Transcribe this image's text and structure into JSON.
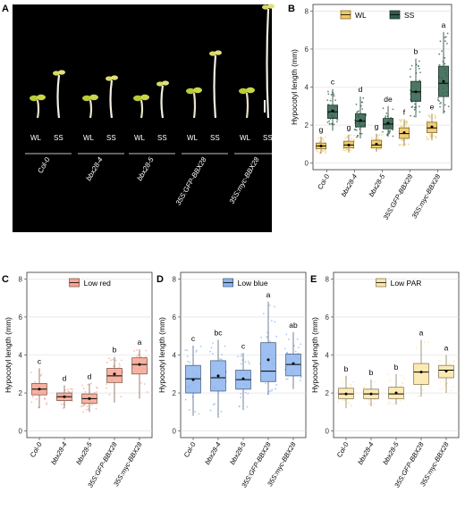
{
  "panel_a": {
    "label": "A",
    "condition_labels": [
      "WL",
      "SS"
    ],
    "genotypes": [
      "Col-0",
      "bbx28-4",
      "bbx28-5",
      "35S:GFP-BBX28",
      "35S:myc-BBX28"
    ]
  },
  "chart_data": [
    {
      "panel": "B",
      "type": "box",
      "xlabel": "",
      "ylabel": "Hypocotyl length (mm)",
      "ylim": [
        0,
        8
      ],
      "yticks": [
        0,
        2,
        4,
        6,
        8
      ],
      "grid": "horizontal",
      "legend": "top-center",
      "categories": [
        "Col-0",
        "bbx28-4",
        "bbx28-5",
        "35S:GFP-BBX28",
        "35S:myc-BBX28"
      ],
      "series": [
        {
          "name": "WL",
          "color": "#f1c75f",
          "boxes": [
            {
              "min": 0.5,
              "q1": 0.75,
              "median": 0.9,
              "q3": 1.05,
              "max": 1.4,
              "mean": 0.9
            },
            {
              "min": 0.55,
              "q1": 0.8,
              "median": 0.95,
              "q3": 1.15,
              "max": 1.5,
              "mean": 0.95
            },
            {
              "min": 0.6,
              "q1": 0.8,
              "median": 0.95,
              "q3": 1.2,
              "max": 1.55,
              "mean": 1.0
            },
            {
              "min": 0.9,
              "q1": 1.3,
              "median": 1.55,
              "q3": 1.85,
              "max": 2.3,
              "mean": 1.6
            },
            {
              "min": 1.2,
              "q1": 1.6,
              "median": 1.85,
              "q3": 2.15,
              "max": 2.6,
              "mean": 1.9
            }
          ],
          "letters": [
            "g",
            "g",
            "g",
            "f",
            "e"
          ]
        },
        {
          "name": "SS",
          "color": "#2f5e4a",
          "boxes": [
            {
              "min": 1.7,
              "q1": 2.35,
              "median": 2.7,
              "q3": 3.05,
              "max": 3.9,
              "mean": 2.75
            },
            {
              "min": 1.3,
              "q1": 1.9,
              "median": 2.2,
              "q3": 2.6,
              "max": 3.5,
              "mean": 2.25
            },
            {
              "min": 1.4,
              "q1": 1.8,
              "median": 2.05,
              "q3": 2.35,
              "max": 3.0,
              "mean": 2.1
            },
            {
              "min": 2.4,
              "q1": 3.25,
              "median": 3.75,
              "q3": 4.3,
              "max": 5.5,
              "mean": 3.75
            },
            {
              "min": 2.6,
              "q1": 3.5,
              "median": 4.2,
              "q3": 5.1,
              "max": 6.9,
              "mean": 4.3
            }
          ],
          "letters": [
            "c",
            "d",
            "de",
            "b",
            "a"
          ]
        }
      ]
    },
    {
      "panel": "C",
      "type": "box",
      "xlabel": "",
      "ylabel": "Hypocotyl length (mm)",
      "ylim": [
        0,
        8
      ],
      "yticks": [
        0,
        2,
        4,
        6,
        8
      ],
      "grid": "horizontal",
      "legend": "top-center",
      "categories": [
        "Col-0",
        "bbx28-4",
        "bbx28-5",
        "35S:GFP-BBX28",
        "35S:myc-BBX28"
      ],
      "series": [
        {
          "name": "Low red",
          "color": "#f4a592",
          "boxes": [
            {
              "min": 1.2,
              "q1": 1.9,
              "median": 2.2,
              "q3": 2.5,
              "max": 3.3,
              "mean": 2.2
            },
            {
              "min": 1.2,
              "q1": 1.6,
              "median": 1.8,
              "q3": 2.0,
              "max": 2.4,
              "mean": 1.8
            },
            {
              "min": 1.0,
              "q1": 1.45,
              "median": 1.7,
              "q3": 1.95,
              "max": 2.5,
              "mean": 1.7
            },
            {
              "min": 1.5,
              "q1": 2.55,
              "median": 2.9,
              "q3": 3.3,
              "max": 3.9,
              "mean": 3.0
            },
            {
              "min": 1.7,
              "q1": 3.0,
              "median": 3.5,
              "q3": 3.85,
              "max": 4.3,
              "mean": 3.5
            }
          ],
          "letters": [
            "c",
            "d",
            "d",
            "b",
            "a"
          ]
        }
      ]
    },
    {
      "panel": "D",
      "type": "box",
      "xlabel": "",
      "ylabel": "Hypocotyl length (mm)",
      "ylim": [
        0,
        8
      ],
      "yticks": [
        0,
        2,
        4,
        6,
        8
      ],
      "grid": "horizontal",
      "legend": "top-center",
      "categories": [
        "Col-0",
        "bbx28-4",
        "bbx28-5",
        "35S:GFP-BBX28",
        "35S:myc-BBX28"
      ],
      "series": [
        {
          "name": "Low blue",
          "color": "#8cb4ef",
          "boxes": [
            {
              "min": 0.8,
              "q1": 2.0,
              "median": 2.75,
              "q3": 3.45,
              "max": 4.5,
              "mean": 2.7
            },
            {
              "min": 0.7,
              "q1": 2.1,
              "median": 2.8,
              "q3": 3.7,
              "max": 4.8,
              "mean": 2.9
            },
            {
              "min": 1.1,
              "q1": 2.2,
              "median": 2.7,
              "q3": 3.2,
              "max": 4.1,
              "mean": 2.75
            },
            {
              "min": 1.9,
              "q1": 2.6,
              "median": 3.15,
              "q3": 4.65,
              "max": 6.8,
              "mean": 3.75
            },
            {
              "min": 2.2,
              "q1": 2.9,
              "median": 3.5,
              "q3": 4.05,
              "max": 5.2,
              "mean": 3.55
            }
          ],
          "letters": [
            "c",
            "bc",
            "c",
            "a",
            "ab"
          ]
        }
      ]
    },
    {
      "panel": "E",
      "type": "box",
      "xlabel": "",
      "ylabel": "Hypocotyl length (mm)",
      "ylim": [
        0,
        8
      ],
      "yticks": [
        0,
        2,
        4,
        6,
        8
      ],
      "grid": "horizontal",
      "legend": "top-center",
      "categories": [
        "Col-0",
        "bbx28-4",
        "bbx28-5",
        "35S:GFP-BBX28",
        "35S:myc-BBX28"
      ],
      "series": [
        {
          "name": "Low PAR",
          "color": "#fbe6a8",
          "boxes": [
            {
              "min": 1.2,
              "q1": 1.7,
              "median": 1.95,
              "q3": 2.25,
              "max": 2.9,
              "mean": 1.95
            },
            {
              "min": 1.3,
              "q1": 1.7,
              "median": 1.95,
              "q3": 2.2,
              "max": 2.7,
              "mean": 1.95
            },
            {
              "min": 1.4,
              "q1": 1.7,
              "median": 1.95,
              "q3": 2.3,
              "max": 3.0,
              "mean": 2.0
            },
            {
              "min": 1.8,
              "q1": 2.45,
              "median": 3.1,
              "q3": 3.55,
              "max": 4.8,
              "mean": 3.1
            },
            {
              "min": 2.0,
              "q1": 2.8,
              "median": 3.2,
              "q3": 3.45,
              "max": 4.0,
              "mean": 3.15
            }
          ],
          "letters": [
            "b",
            "b",
            "b",
            "a",
            "a"
          ]
        }
      ]
    }
  ]
}
